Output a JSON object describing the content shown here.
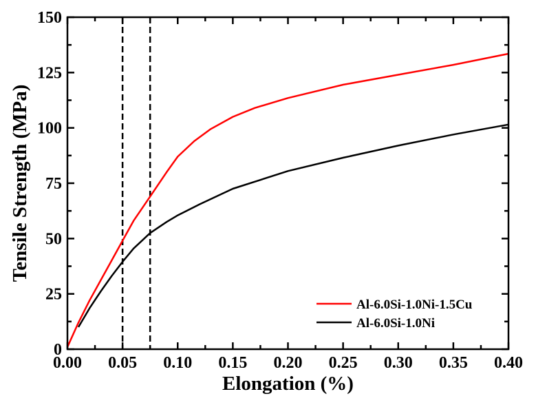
{
  "chart_data": {
    "type": "line",
    "title": "",
    "xlabel": "Elongation (%)",
    "ylabel": "Tensile Strength (MPa)",
    "xlim": [
      0,
      0.4
    ],
    "ylim": [
      0,
      150
    ],
    "xticks": [
      "0.00",
      "0.05",
      "0.10",
      "0.15",
      "0.20",
      "0.25",
      "0.30",
      "0.35",
      "0.40"
    ],
    "yticks": [
      "0",
      "25",
      "50",
      "75",
      "100",
      "125",
      "150"
    ],
    "grid": false,
    "legend_position": "bottom-right",
    "vertical_dashed_lines": [
      0.05,
      0.075
    ],
    "series": [
      {
        "name": "Al-6.0Si-1.0Ni-1.5Cu",
        "color": "#ff0000",
        "x": [
          0.0,
          0.01,
          0.02,
          0.03,
          0.04,
          0.05,
          0.06,
          0.075,
          0.09,
          0.1,
          0.115,
          0.13,
          0.15,
          0.17,
          0.2,
          0.25,
          0.3,
          0.35,
          0.4
        ],
        "y": [
          1,
          12,
          22,
          31,
          40,
          49,
          58,
          69,
          80,
          87,
          94,
          99.5,
          105,
          109,
          113.5,
          119.5,
          124,
          128.5,
          133.5
        ]
      },
      {
        "name": "Al-6.0Si-1.0Ni",
        "color": "#000000",
        "x": [
          0.01,
          0.02,
          0.03,
          0.04,
          0.05,
          0.06,
          0.075,
          0.09,
          0.1,
          0.12,
          0.15,
          0.2,
          0.25,
          0.3,
          0.35,
          0.4
        ],
        "y": [
          10,
          18.5,
          26,
          33,
          39.5,
          45.5,
          52.5,
          57.5,
          60.5,
          65.5,
          72.5,
          80.5,
          86.5,
          92,
          97,
          101.5
        ]
      }
    ]
  }
}
